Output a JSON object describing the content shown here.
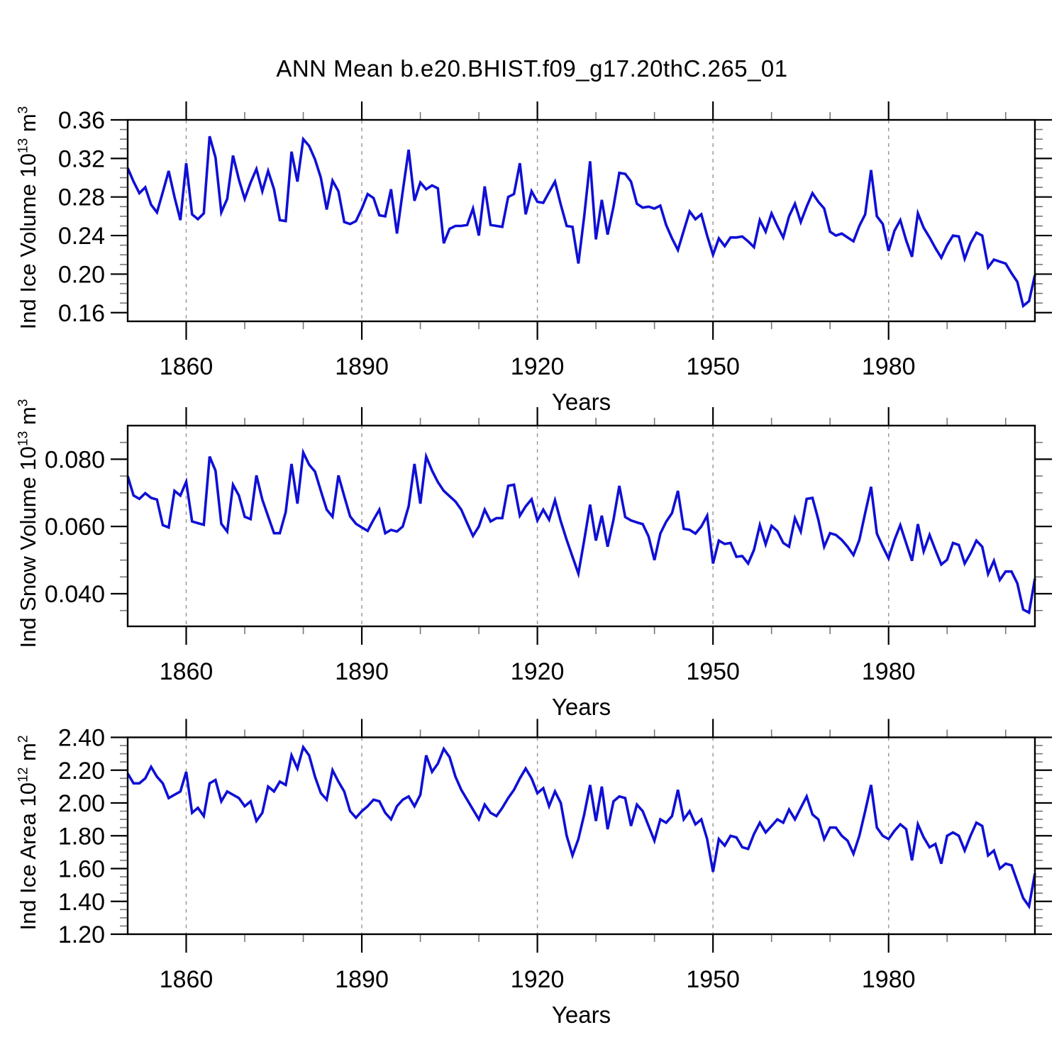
{
  "title": "ANN Mean b.e20.BHIST.f09_g17.20thC.265_01",
  "colors": {
    "line": "#0f0fd6",
    "axis": "#000000",
    "minor_tick": "#777777",
    "gridline": "#999999"
  },
  "xaxis_label": "Years",
  "chart_data": [
    {
      "type": "line",
      "ylabel_parts": {
        "t1": "Ind Ice Volume 10",
        "sup1": "13",
        "t2": " m",
        "sup2": "3"
      },
      "xlabel": "Years",
      "x_start": 1850,
      "x_end": 2005,
      "xlim": [
        1850,
        2005
      ],
      "ylim": [
        0.151,
        0.36
      ],
      "xticks": {
        "values": [
          1860,
          1890,
          1920,
          1950,
          1980
        ],
        "labels": [
          "1860",
          "1890",
          "1920",
          "1950",
          "1980"
        ],
        "minor_step": 10
      },
      "yticks": {
        "values": [
          0.16,
          0.2,
          0.24,
          0.28,
          0.32,
          0.36
        ],
        "labels": [
          "0.16",
          "0.20",
          "0.24",
          "0.28",
          "0.32",
          "0.36"
        ],
        "minor_step": 0.01
      },
      "grid_on": true,
      "legend": "none",
      "values": [
        0.31,
        0.296,
        0.284,
        0.29,
        0.272,
        0.264,
        0.285,
        0.307,
        0.28,
        0.256,
        0.315,
        0.262,
        0.257,
        0.263,
        0.343,
        0.321,
        0.264,
        0.278,
        0.323,
        0.298,
        0.278,
        0.295,
        0.309,
        0.286,
        0.307,
        0.288,
        0.256,
        0.255,
        0.327,
        0.296,
        0.34,
        0.333,
        0.319,
        0.3,
        0.267,
        0.297,
        0.286,
        0.254,
        0.252,
        0.255,
        0.268,
        0.283,
        0.279,
        0.261,
        0.26,
        0.288,
        0.242,
        0.286,
        0.329,
        0.276,
        0.295,
        0.288,
        0.292,
        0.289,
        0.232,
        0.247,
        0.25,
        0.25,
        0.251,
        0.268,
        0.24,
        0.291,
        0.251,
        0.25,
        0.249,
        0.28,
        0.283,
        0.315,
        0.262,
        0.286,
        0.275,
        0.274,
        0.285,
        0.296,
        0.272,
        0.25,
        0.249,
        0.211,
        0.26,
        0.317,
        0.236,
        0.277,
        0.241,
        0.27,
        0.305,
        0.304,
        0.296,
        0.273,
        0.269,
        0.27,
        0.268,
        0.271,
        0.251,
        0.237,
        0.225,
        0.245,
        0.265,
        0.257,
        0.262,
        0.24,
        0.22,
        0.237,
        0.229,
        0.238,
        0.238,
        0.239,
        0.234,
        0.228,
        0.256,
        0.244,
        0.263,
        0.25,
        0.238,
        0.26,
        0.273,
        0.254,
        0.27,
        0.284,
        0.275,
        0.268,
        0.244,
        0.24,
        0.242,
        0.238,
        0.234,
        0.25,
        0.262,
        0.308,
        0.26,
        0.252,
        0.224,
        0.245,
        0.256,
        0.235,
        0.218,
        0.263,
        0.248,
        0.238,
        0.227,
        0.217,
        0.23,
        0.24,
        0.239,
        0.216,
        0.232,
        0.243,
        0.24,
        0.207,
        0.215,
        0.213,
        0.211,
        0.201,
        0.192,
        0.167,
        0.172,
        0.199
      ]
    },
    {
      "type": "line",
      "ylabel_parts": {
        "t1": "Ind Snow Volume 10",
        "sup1": "13",
        "t2": " m",
        "sup2": "3"
      },
      "xlabel": "Years",
      "x_start": 1850,
      "x_end": 2005,
      "xlim": [
        1850,
        2005
      ],
      "ylim": [
        0.0303,
        0.09
      ],
      "xticks": {
        "values": [
          1860,
          1890,
          1920,
          1950,
          1980
        ],
        "labels": [
          "1860",
          "1890",
          "1920",
          "1950",
          "1980"
        ],
        "minor_step": 10
      },
      "yticks": {
        "values": [
          0.04,
          0.06,
          0.08
        ],
        "labels": [
          "0.040",
          "0.060",
          "0.080"
        ],
        "minor_step": 0.005
      },
      "grid_on": true,
      "legend": "none",
      "values": [
        0.075,
        0.0692,
        0.0682,
        0.0699,
        0.0685,
        0.068,
        0.0604,
        0.0597,
        0.0706,
        0.0692,
        0.0733,
        0.0615,
        0.061,
        0.0605,
        0.0808,
        0.0766,
        0.0608,
        0.0585,
        0.0724,
        0.0692,
        0.0629,
        0.0622,
        0.0752,
        0.068,
        0.063,
        0.058,
        0.058,
        0.0643,
        0.0786,
        0.0668,
        0.082,
        0.0784,
        0.0763,
        0.0706,
        0.065,
        0.0629,
        0.0752,
        0.069,
        0.063,
        0.0608,
        0.0597,
        0.0587,
        0.062,
        0.065,
        0.058,
        0.059,
        0.0585,
        0.06,
        0.066,
        0.0786,
        0.0668,
        0.0808,
        0.0766,
        0.0732,
        0.0706,
        0.069,
        0.0674,
        0.065,
        0.061,
        0.0572,
        0.06,
        0.065,
        0.0615,
        0.0625,
        0.0625,
        0.0721,
        0.0724,
        0.0632,
        0.066,
        0.0681,
        0.0618,
        0.065,
        0.062,
        0.0678,
        0.0615,
        0.056,
        0.051,
        0.046,
        0.0559,
        0.0665,
        0.0558,
        0.0632,
        0.054,
        0.062,
        0.0721,
        0.0628,
        0.0618,
        0.0612,
        0.0607,
        0.057,
        0.05,
        0.0579,
        0.0614,
        0.064,
        0.0706,
        0.0593,
        0.059,
        0.0579,
        0.06,
        0.0632,
        0.049,
        0.0558,
        0.0548,
        0.0551,
        0.051,
        0.0512,
        0.049,
        0.053,
        0.0604,
        0.0547,
        0.0602,
        0.0586,
        0.0551,
        0.054,
        0.0625,
        0.0585,
        0.0682,
        0.0685,
        0.062,
        0.054,
        0.058,
        0.0575,
        0.056,
        0.054,
        0.0515,
        0.056,
        0.064,
        0.0718,
        0.0579,
        0.054,
        0.0505,
        0.056,
        0.0604,
        0.055,
        0.0498,
        0.0607,
        0.0526,
        0.0575,
        0.053,
        0.0487,
        0.0501,
        0.0551,
        0.0545,
        0.049,
        0.052,
        0.0558,
        0.054,
        0.0459,
        0.0498,
        0.0441,
        0.0466,
        0.0466,
        0.0431,
        0.0353,
        0.0344,
        0.0445
      ]
    },
    {
      "type": "line",
      "ylabel_parts": {
        "t1": "Ind Ice Area 10",
        "sup1": "12",
        "t2": " m",
        "sup2": "2"
      },
      "xlabel": "Years",
      "x_start": 1850,
      "x_end": 2005,
      "xlim": [
        1850,
        2005
      ],
      "ylim": [
        1.2,
        2.4
      ],
      "xticks": {
        "values": [
          1860,
          1890,
          1920,
          1950,
          1980
        ],
        "labels": [
          "1860",
          "1890",
          "1920",
          "1950",
          "1980"
        ],
        "minor_step": 10
      },
      "yticks": {
        "values": [
          1.2,
          1.4,
          1.6,
          1.8,
          2.0,
          2.2,
          2.4
        ],
        "labels": [
          "1.20",
          "1.40",
          "1.60",
          "1.80",
          "2.00",
          "2.20",
          "2.40"
        ],
        "minor_step": 0.05
      },
      "grid_on": true,
      "legend": "none",
      "values": [
        2.18,
        2.12,
        2.12,
        2.15,
        2.22,
        2.16,
        2.12,
        2.03,
        2.05,
        2.07,
        2.19,
        1.94,
        1.97,
        1.92,
        2.12,
        2.14,
        2.01,
        2.07,
        2.05,
        2.03,
        1.98,
        2.01,
        1.89,
        1.94,
        2.1,
        2.07,
        2.13,
        2.11,
        2.29,
        2.21,
        2.34,
        2.29,
        2.16,
        2.06,
        2.02,
        2.2,
        2.13,
        2.07,
        1.95,
        1.91,
        1.95,
        1.98,
        2.02,
        2.01,
        1.94,
        1.9,
        1.98,
        2.02,
        2.04,
        1.98,
        2.05,
        2.29,
        2.19,
        2.24,
        2.33,
        2.28,
        2.16,
        2.08,
        2.02,
        1.96,
        1.9,
        1.99,
        1.94,
        1.92,
        1.97,
        2.03,
        2.08,
        2.15,
        2.21,
        2.15,
        2.06,
        2.09,
        1.98,
        2.07,
        2.0,
        1.8,
        1.68,
        1.78,
        1.93,
        2.11,
        1.89,
        2.1,
        1.84,
        2.01,
        2.04,
        2.03,
        1.86,
        1.99,
        1.95,
        1.86,
        1.77,
        1.9,
        1.88,
        1.92,
        2.08,
        1.9,
        1.95,
        1.87,
        1.9,
        1.78,
        1.58,
        1.78,
        1.74,
        1.8,
        1.79,
        1.73,
        1.72,
        1.81,
        1.88,
        1.82,
        1.86,
        1.9,
        1.88,
        1.96,
        1.9,
        1.97,
        2.04,
        1.93,
        1.9,
        1.78,
        1.85,
        1.85,
        1.8,
        1.77,
        1.69,
        1.8,
        1.95,
        2.11,
        1.85,
        1.8,
        1.78,
        1.83,
        1.87,
        1.84,
        1.65,
        1.87,
        1.79,
        1.73,
        1.75,
        1.63,
        1.8,
        1.82,
        1.8,
        1.71,
        1.8,
        1.88,
        1.86,
        1.68,
        1.71,
        1.6,
        1.63,
        1.62,
        1.52,
        1.42,
        1.37,
        1.57
      ]
    }
  ]
}
